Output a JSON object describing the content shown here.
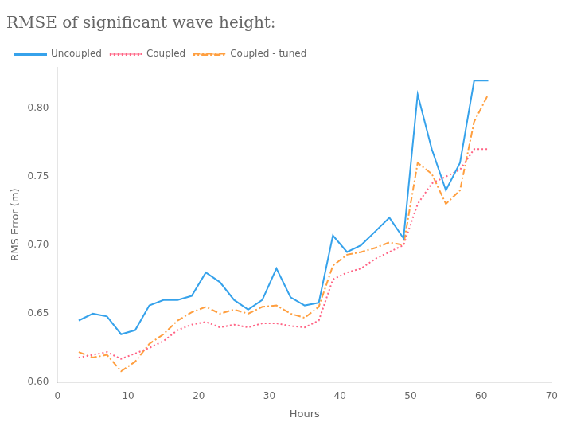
{
  "chart_data": {
    "type": "line",
    "title": "RMSE of significant wave height:",
    "xlabel": "Hours",
    "ylabel": "RMS Error (m)",
    "xlim": [
      0,
      70
    ],
    "xticks": [
      0,
      10,
      20,
      30,
      40,
      50,
      60,
      70
    ],
    "ylim": [
      0.6,
      0.83
    ],
    "yticks": [
      {
        "value": 0.6,
        "label": "0.60"
      },
      0.65,
      {
        "value": 0.7,
        "label": "0.70"
      },
      0.75,
      {
        "value": 0.8,
        "label": "0.80"
      }
    ],
    "grid": false,
    "legend": "upper left",
    "x": [
      3,
      5,
      7,
      9,
      11,
      13,
      15,
      17,
      19,
      21,
      23,
      25,
      27,
      29,
      31,
      33,
      35,
      37,
      39,
      41,
      43,
      45,
      47,
      49,
      51,
      53,
      55,
      57,
      59,
      61
    ],
    "series": [
      {
        "name": "Uncoupled",
        "line_style": "solid",
        "values": [
          0.645,
          0.65,
          0.648,
          0.635,
          0.638,
          0.656,
          0.66,
          0.66,
          0.663,
          0.68,
          0.673,
          0.66,
          0.653,
          0.66,
          0.683,
          0.662,
          0.656,
          0.658,
          0.707,
          0.695,
          0.7,
          0.71,
          0.72,
          0.705,
          0.81,
          0.77,
          0.74,
          0.76,
          0.82,
          0.82
        ]
      },
      {
        "name": "Coupled",
        "line_style": "dotted",
        "values": [
          0.618,
          0.62,
          0.622,
          0.617,
          0.621,
          0.625,
          0.63,
          0.638,
          0.642,
          0.644,
          0.64,
          0.642,
          0.64,
          0.643,
          0.643,
          0.641,
          0.64,
          0.645,
          0.675,
          0.68,
          0.683,
          0.69,
          0.695,
          0.7,
          0.73,
          0.745,
          0.75,
          0.755,
          0.77,
          0.77
        ]
      },
      {
        "name": "Coupled - tuned",
        "line_style": "dashdot",
        "values": [
          0.622,
          0.618,
          0.62,
          0.608,
          0.615,
          0.628,
          0.635,
          0.645,
          0.651,
          0.655,
          0.65,
          0.653,
          0.65,
          0.655,
          0.656,
          0.65,
          0.647,
          0.655,
          0.685,
          0.693,
          0.695,
          0.698,
          0.702,
          0.7,
          0.76,
          0.752,
          0.73,
          0.74,
          0.79,
          0.81
        ]
      }
    ]
  }
}
